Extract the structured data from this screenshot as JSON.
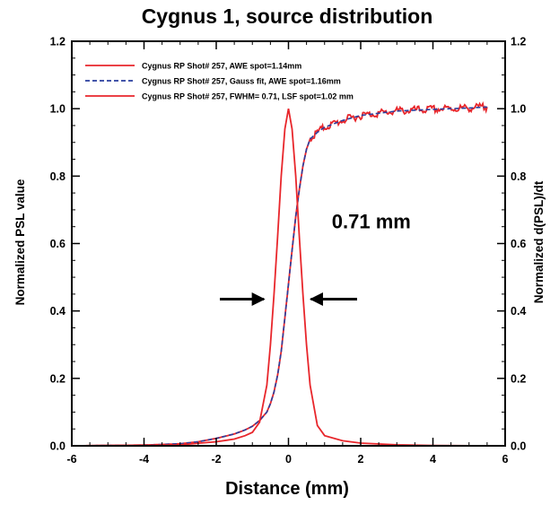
{
  "chart_data": {
    "type": "line",
    "title": "Cygnus 1, source distribution",
    "xlabel": "Distance (mm)",
    "ylabel": "Normalized PSL value",
    "ylabel_right": "Normalized d(PSL)/dt",
    "xlim": [
      -6,
      6
    ],
    "ylim": [
      0,
      1.2
    ],
    "xticks": [
      "-6",
      "-4",
      "-2",
      "0",
      "2",
      "4",
      "6"
    ],
    "yticks": [
      "0.0",
      "0.2",
      "0.4",
      "0.6",
      "0.8",
      "1.0",
      "1.2"
    ],
    "yticks_right": [
      "0.0",
      "0.2",
      "0.4",
      "0.6",
      "0.8",
      "1.0",
      "1.2"
    ],
    "grid": false,
    "legend_position": "top-left",
    "series": [
      {
        "name": "Cygnus RP Shot# 257, AWE spot=1.14mm",
        "color": "#e8262b",
        "style": "solid",
        "x": [
          -6,
          -4,
          -3,
          -2.5,
          -2,
          -1.5,
          -1.2,
          -1,
          -0.8,
          -0.6,
          -0.5,
          -0.4,
          -0.3,
          -0.2,
          -0.1,
          0,
          0.1,
          0.2,
          0.3,
          0.4,
          0.5,
          0.6,
          0.8,
          1,
          1.5,
          2,
          3,
          4,
          5,
          5.5
        ],
        "y": [
          0,
          0.002,
          0.006,
          0.012,
          0.022,
          0.035,
          0.047,
          0.058,
          0.075,
          0.1,
          0.125,
          0.16,
          0.21,
          0.28,
          0.38,
          0.48,
          0.58,
          0.68,
          0.76,
          0.83,
          0.88,
          0.91,
          0.93,
          0.945,
          0.965,
          0.98,
          0.993,
          0.998,
          1.002,
          1.005
        ]
      },
      {
        "name": "Cygnus RP Shot# 257, Gauss fit, AWE spot=1.16mm",
        "color": "#2a3f9e",
        "style": "dashed",
        "x": [
          -6,
          -4,
          -3,
          -2.5,
          -2,
          -1.5,
          -1.2,
          -1,
          -0.8,
          -0.6,
          -0.5,
          -0.4,
          -0.3,
          -0.2,
          -0.1,
          0,
          0.1,
          0.2,
          0.3,
          0.4,
          0.5,
          0.6,
          0.8,
          1,
          1.5,
          2,
          3,
          4,
          5,
          5.5
        ],
        "y": [
          0,
          0.002,
          0.006,
          0.012,
          0.022,
          0.035,
          0.047,
          0.058,
          0.075,
          0.1,
          0.125,
          0.16,
          0.21,
          0.28,
          0.38,
          0.48,
          0.58,
          0.68,
          0.76,
          0.83,
          0.88,
          0.91,
          0.93,
          0.945,
          0.965,
          0.98,
          0.993,
          0.998,
          1.002,
          1.005
        ]
      },
      {
        "name": "Cygnus RP Shot# 257, FWHM= 0.71, LSF spot=1.02 mm",
        "color": "#e8262b",
        "style": "solid",
        "x": [
          -6,
          -3,
          -2,
          -1.5,
          -1.2,
          -1,
          -0.8,
          -0.6,
          -0.5,
          -0.4,
          -0.3,
          -0.2,
          -0.1,
          0,
          0.1,
          0.2,
          0.3,
          0.4,
          0.5,
          0.6,
          0.8,
          1,
          1.5,
          2,
          3,
          4,
          5.5
        ],
        "y": [
          0,
          0.003,
          0.012,
          0.02,
          0.03,
          0.04,
          0.07,
          0.18,
          0.3,
          0.45,
          0.62,
          0.8,
          0.94,
          1.0,
          0.94,
          0.8,
          0.62,
          0.45,
          0.3,
          0.18,
          0.06,
          0.03,
          0.015,
          0.008,
          0.003,
          0.001,
          0
        ]
      }
    ],
    "annotations": [
      {
        "text": "0.71 mm",
        "x": 1.2,
        "y": 0.645
      }
    ],
    "arrows": [
      {
        "from": [
          -1.9,
          0.435
        ],
        "to": [
          -0.68,
          0.435
        ]
      },
      {
        "from": [
          1.9,
          0.435
        ],
        "to": [
          0.62,
          0.435
        ]
      }
    ]
  }
}
